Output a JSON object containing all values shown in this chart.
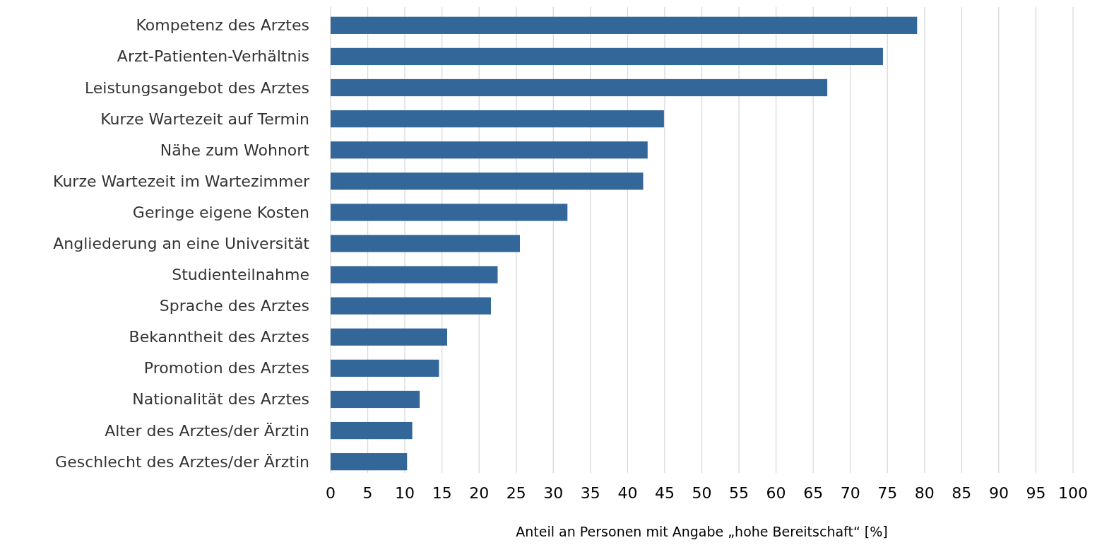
{
  "chart_data": {
    "type": "bar",
    "orientation": "horizontal",
    "xlabel": "Anteil an Personen mit Angabe „hohe Bereitschaft“ [%]",
    "categories": [
      "Kompetenz des Arztes",
      "Arzt-Patienten-Verhältnis",
      "Leistungsangebot des Arztes",
      "Kurze Wartezeit auf Termin",
      "Nähe zum Wohnort",
      "Kurze Wartezeit im Wartezimmer",
      "Geringe eigene Kosten",
      "Angliederung an eine Universität",
      "Studienteilnahme",
      "Sprache des Arztes",
      "Bekanntheit des Arztes",
      "Promotion des Arztes",
      "Nationalität des Arztes",
      "Alter des Arztes/der Ärztin",
      "Geschlecht des Arztes/der Ärztin"
    ],
    "values": [
      79.0,
      74.4,
      66.9,
      44.9,
      42.7,
      42.1,
      31.9,
      25.5,
      22.5,
      21.6,
      15.7,
      14.6,
      12.0,
      11.0,
      10.3
    ],
    "color": "#336699",
    "xlim": [
      0,
      100
    ],
    "xticks": [
      0,
      5,
      10,
      15,
      20,
      25,
      30,
      35,
      40,
      45,
      50,
      55,
      60,
      65,
      70,
      75,
      80,
      85,
      90,
      95,
      100
    ],
    "grid": "x"
  }
}
